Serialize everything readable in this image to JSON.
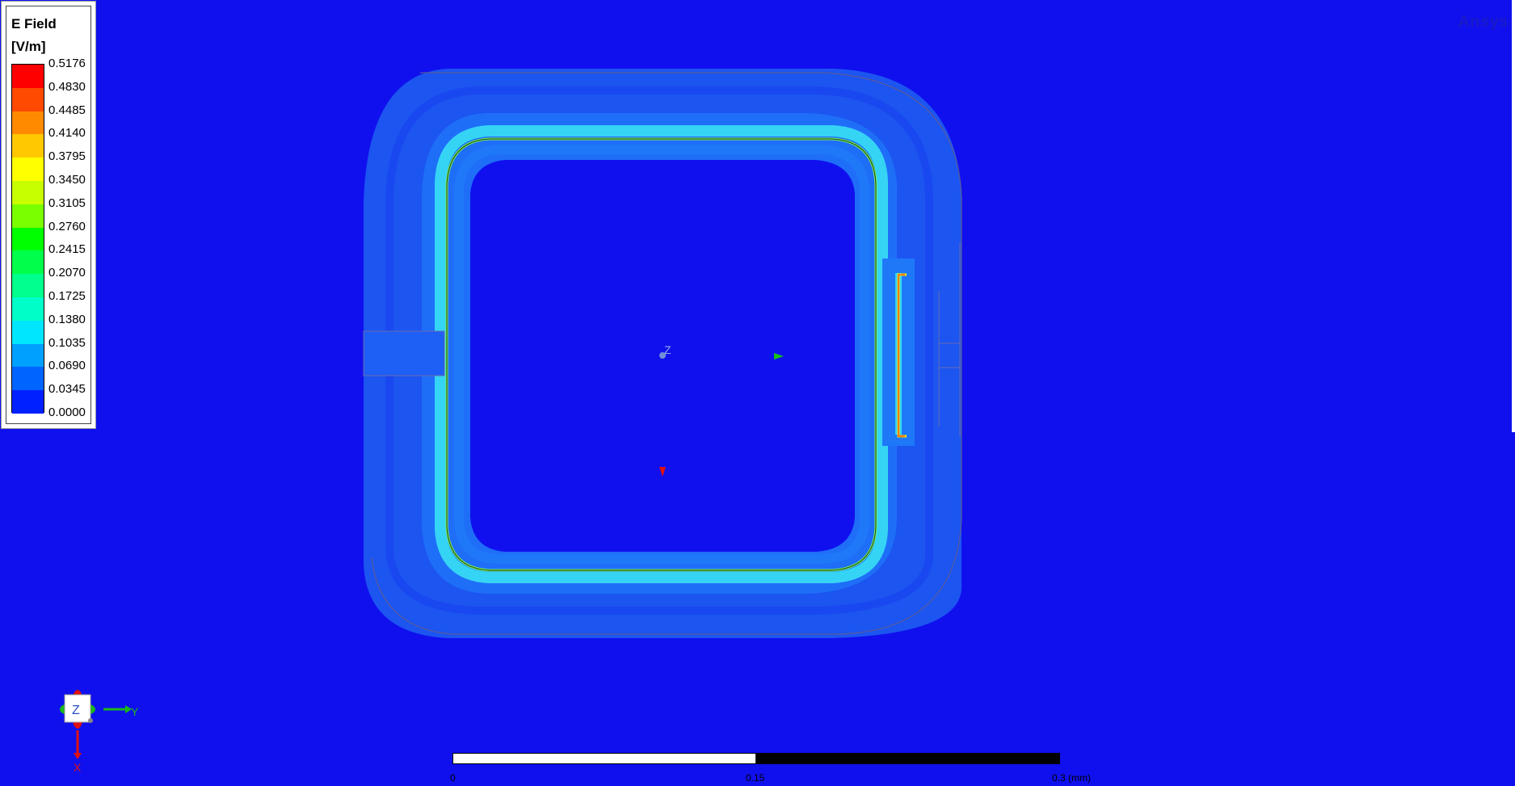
{
  "legend": {
    "title": "E Field",
    "unit": "[V/m]",
    "ticks": [
      "0.5176",
      "0.4830",
      "0.4485",
      "0.4140",
      "0.3795",
      "0.3450",
      "0.3105",
      "0.2760",
      "0.2415",
      "0.2070",
      "0.1725",
      "0.1380",
      "0.1035",
      "0.0690",
      "0.0345",
      "0.0000"
    ],
    "colors": [
      "#ff0000",
      "#ff4a00",
      "#ff8a00",
      "#ffc800",
      "#ffff00",
      "#c8ff00",
      "#7aff00",
      "#00ff00",
      "#00ff4a",
      "#00ff8c",
      "#00ffc8",
      "#00e6ff",
      "#00a0ff",
      "#0064ff",
      "#0020ff"
    ]
  },
  "brand": "Ansys",
  "triad": {
    "center_label": "Z",
    "y_label": "Y",
    "x_label": "X"
  },
  "scene": {
    "origin_label": "Z"
  },
  "scale": {
    "start": "0",
    "mid": "0.15",
    "end": "0.3 (mm)"
  },
  "colors": {
    "background": "#1010ee",
    "outer_glow": "#1c5ff0",
    "mid_glow": "#1e78f8",
    "cyan": "#35d4f5",
    "green": "#3cff64",
    "yellow": "#ffe600",
    "red": "#ff1a00",
    "outline": "#5a5a9a"
  }
}
